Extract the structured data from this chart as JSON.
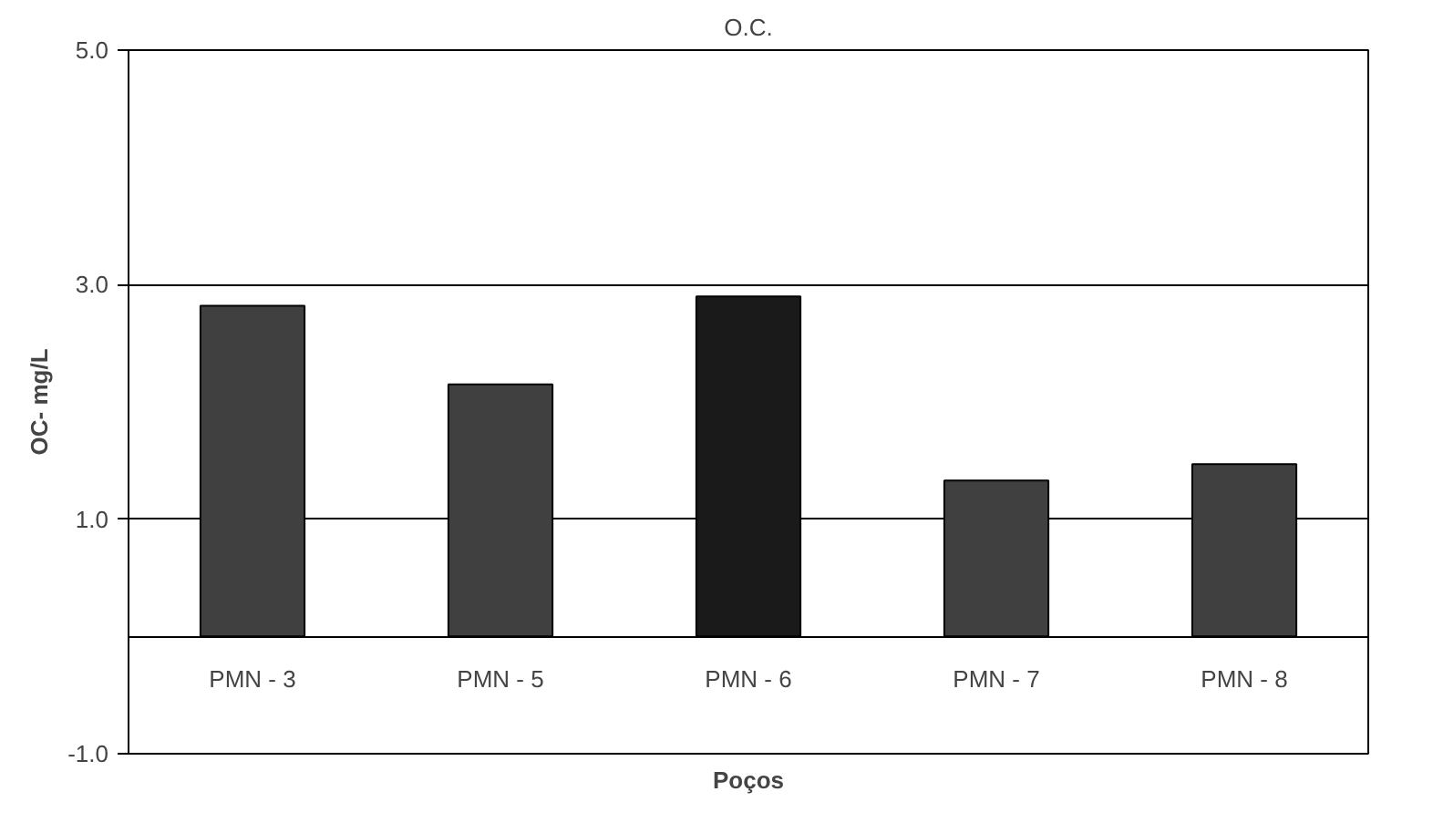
{
  "chart_data": {
    "type": "bar",
    "title": "O.C.",
    "xlabel": "Poços",
    "ylabel": "OC- mg/L",
    "categories": [
      "PMN - 3",
      "PMN - 5",
      "PMN - 6",
      "PMN - 7",
      "PMN - 8"
    ],
    "values": [
      2.82,
      2.15,
      2.9,
      1.33,
      1.47
    ],
    "colors": [
      "#404040",
      "#404040",
      "#1a1a1a",
      "#404040",
      "#404040"
    ],
    "ylim": [
      -1.0,
      5.0
    ],
    "yticks": [
      {
        "value": -1,
        "label": "-1.0"
      },
      {
        "value": 1,
        "label": "1.0"
      },
      {
        "value": 3,
        "label": "3.0"
      },
      {
        "value": 5,
        "label": "5.0"
      }
    ],
    "grid": "y"
  }
}
